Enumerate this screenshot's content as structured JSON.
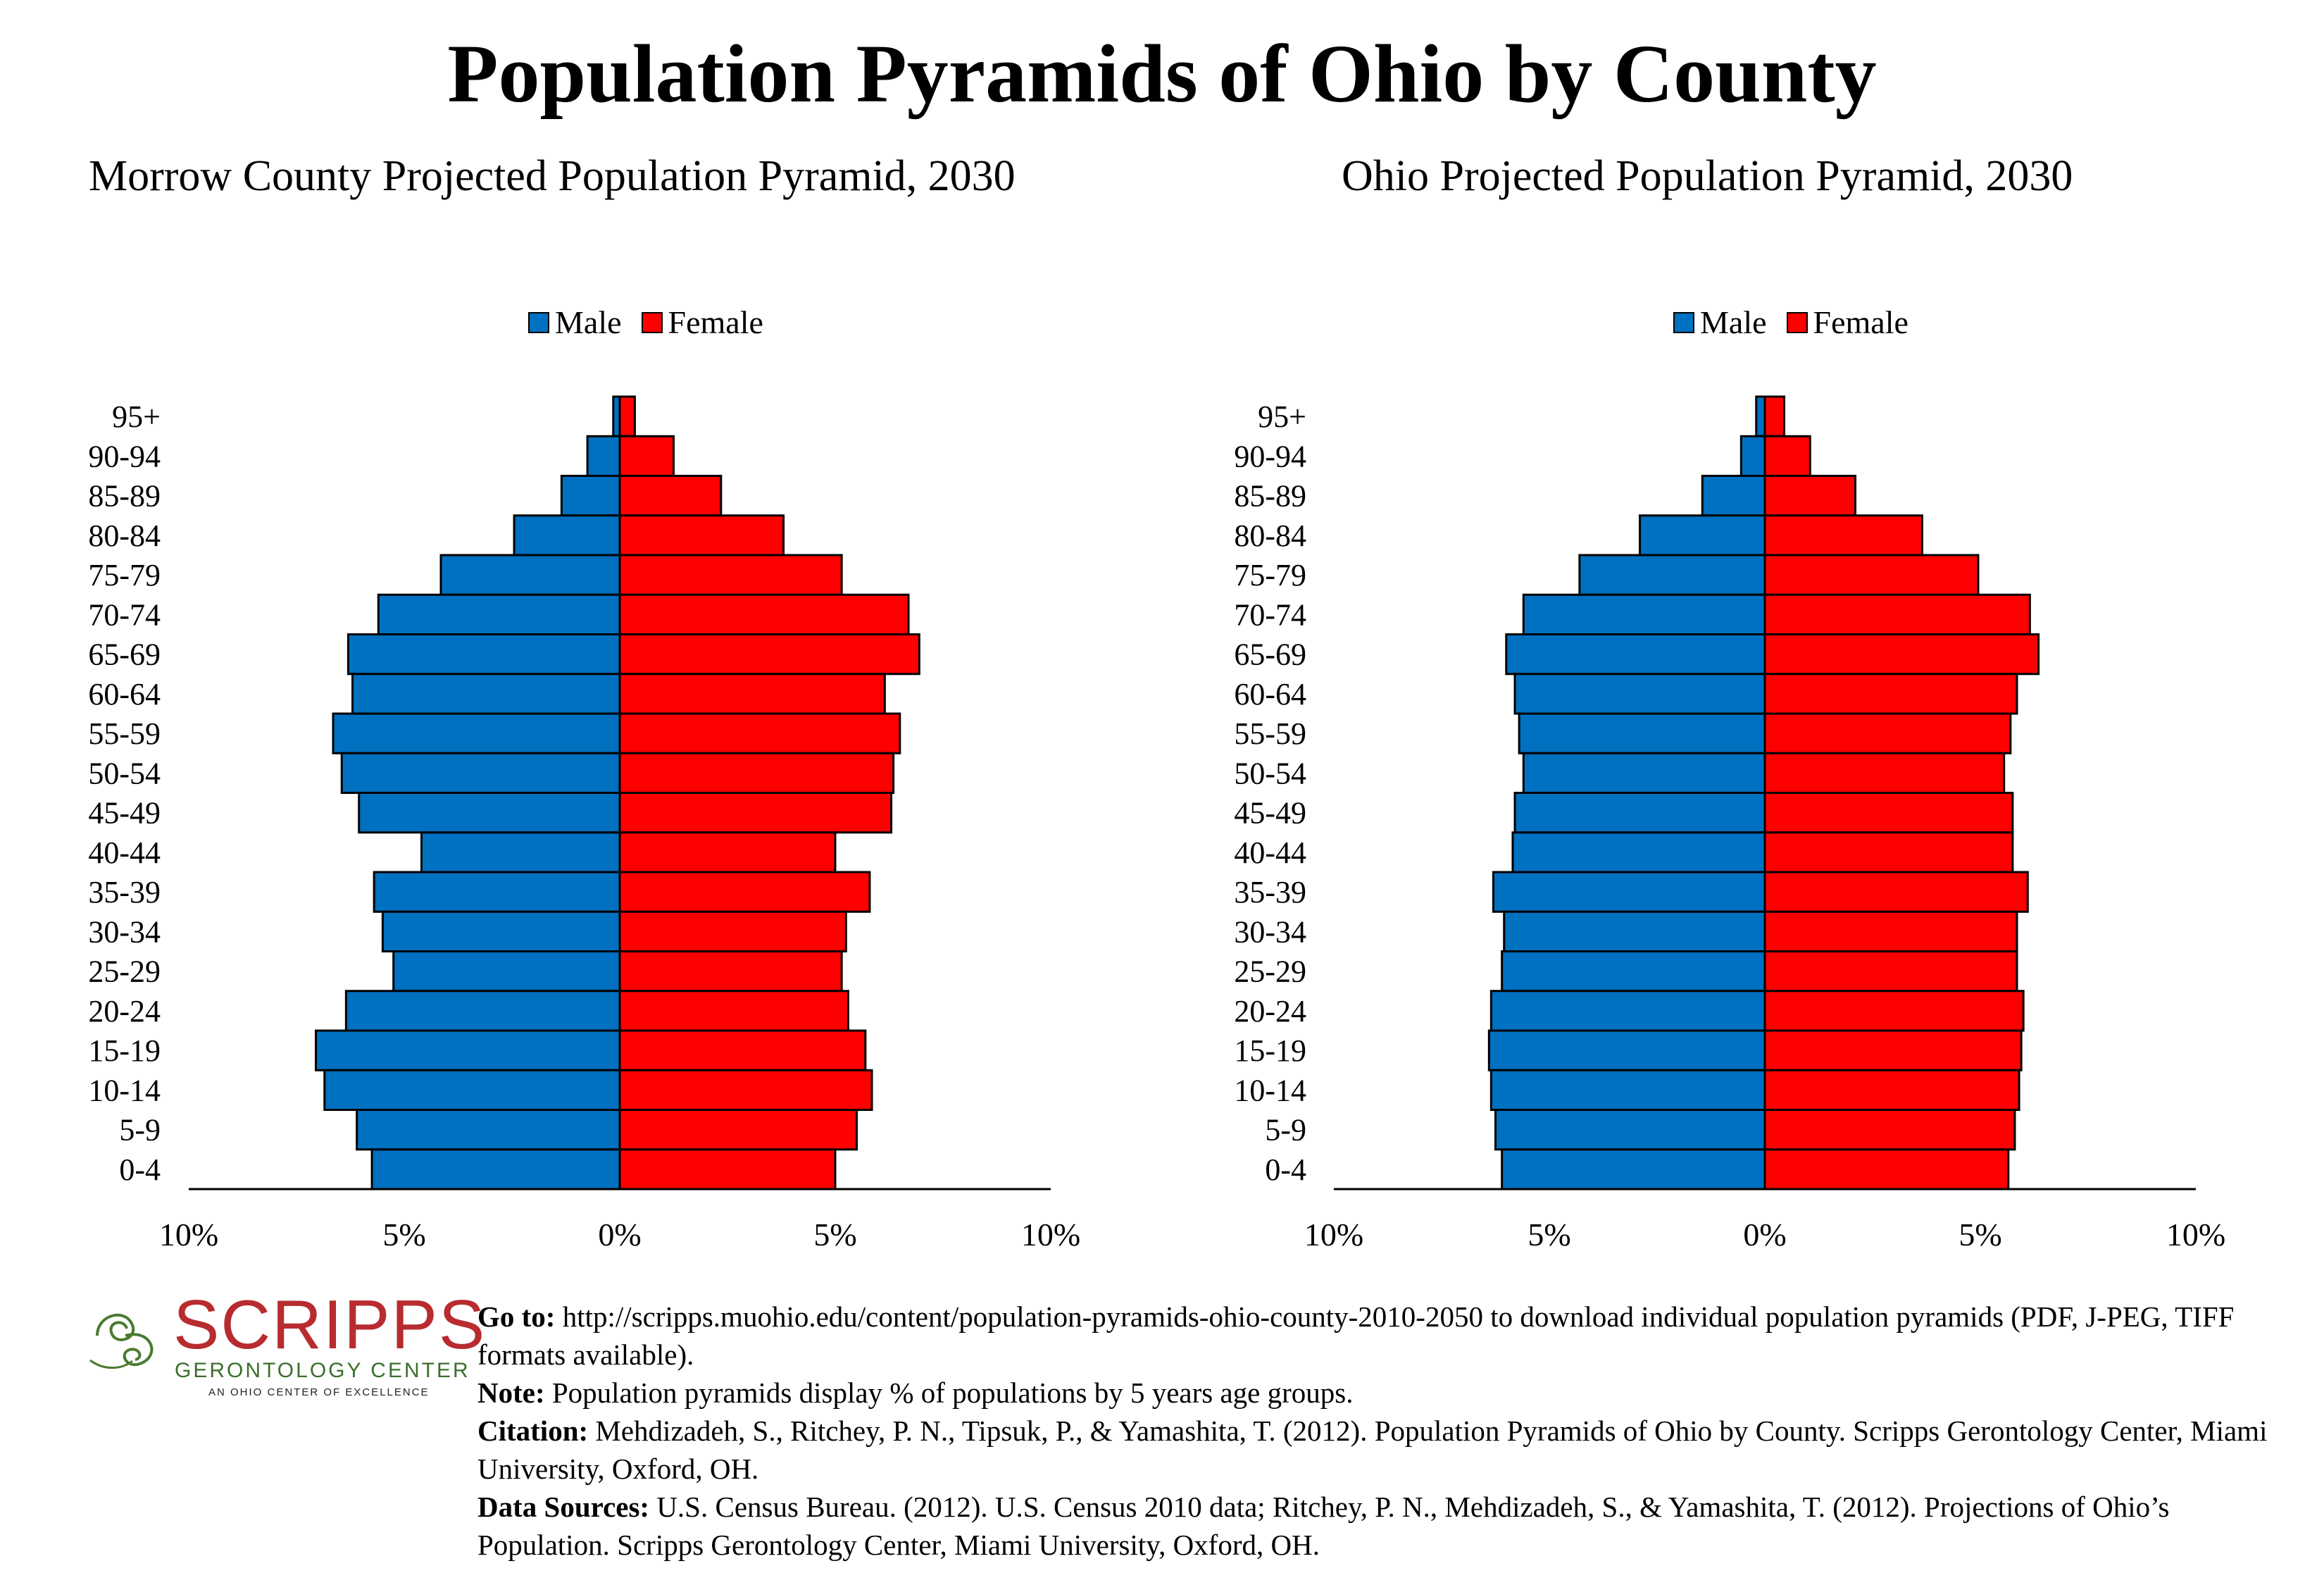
{
  "title": "Population Pyramids of Ohio by County",
  "legend": {
    "male": "Male",
    "female": "Female"
  },
  "colors": {
    "male": "#0070c0",
    "female": "#ff0000",
    "outline": "#000000"
  },
  "chart_data": [
    {
      "type": "bar",
      "orientation": "horizontal-pyramid",
      "title": "Morrow County Projected Population Pyramid, 2030",
      "categories": [
        "95+",
        "90-94",
        "85-89",
        "80-84",
        "75-79",
        "70-74",
        "65-69",
        "60-64",
        "55-59",
        "50-54",
        "45-49",
        "40-44",
        "35-39",
        "30-34",
        "25-29",
        "20-24",
        "15-19",
        "10-14",
        "5-9",
        "0-4"
      ],
      "series": [
        {
          "name": "Male",
          "values": [
            0.15,
            0.75,
            1.35,
            2.45,
            4.15,
            5.6,
            6.3,
            6.2,
            6.65,
            6.45,
            6.05,
            4.6,
            5.7,
            5.5,
            5.25,
            6.35,
            7.05,
            6.85,
            6.1,
            5.75
          ]
        },
        {
          "name": "Female",
          "values": [
            0.35,
            1.25,
            2.35,
            3.8,
            5.15,
            6.7,
            6.95,
            6.15,
            6.5,
            6.35,
            6.3,
            5.0,
            5.8,
            5.25,
            5.15,
            5.3,
            5.7,
            5.85,
            5.5,
            5.0
          ]
        }
      ],
      "xlim": [
        -10,
        10
      ],
      "x_ticks": [
        "10%",
        "5%",
        "0%",
        "5%",
        "10%"
      ],
      "legend_position": "top"
    },
    {
      "type": "bar",
      "orientation": "horizontal-pyramid",
      "title": "Ohio Projected Population Pyramid, 2030",
      "categories": [
        "95+",
        "90-94",
        "85-89",
        "80-84",
        "75-79",
        "70-74",
        "65-69",
        "60-64",
        "55-59",
        "50-54",
        "45-49",
        "40-44",
        "35-39",
        "30-34",
        "25-29",
        "20-24",
        "15-19",
        "10-14",
        "5-9",
        "0-4"
      ],
      "series": [
        {
          "name": "Male",
          "values": [
            0.2,
            0.55,
            1.45,
            2.9,
            4.3,
            5.6,
            6.0,
            5.8,
            5.7,
            5.6,
            5.8,
            5.85,
            6.3,
            6.05,
            6.1,
            6.35,
            6.4,
            6.35,
            6.25,
            6.1
          ]
        },
        {
          "name": "Female",
          "values": [
            0.45,
            1.05,
            2.1,
            3.65,
            4.95,
            6.15,
            6.35,
            5.85,
            5.7,
            5.55,
            5.75,
            5.75,
            6.1,
            5.85,
            5.85,
            6.0,
            5.95,
            5.9,
            5.8,
            5.65
          ]
        }
      ],
      "xlim": [
        -10,
        10
      ],
      "x_ticks": [
        "10%",
        "5%",
        "0%",
        "5%",
        "10%"
      ],
      "legend_position": "top"
    }
  ],
  "logo": {
    "word": "SCRIPPS",
    "subtitle": "GERONTOLOGY CENTER",
    "tagline": "AN OHIO CENTER OF EXCELLENCE"
  },
  "notes": [
    {
      "label": "Go to:",
      "text": " http://scripps.muohio.edu/content/population-pyramids-ohio-county-2010-2050 to download individual population pyramids (PDF, J-PEG, TIFF formats available)."
    },
    {
      "label": "Note:",
      "text": " Population pyramids display % of populations by 5 years age groups."
    },
    {
      "label": "Citation:",
      "text": " Mehdizadeh, S., Ritchey, P. N., Tipsuk, P., & Yamashita, T. (2012). Population Pyramids of Ohio by County. Scripps Gerontology Center, Miami University, Oxford, OH."
    },
    {
      "label": "Data Sources:",
      "text": " U.S. Census Bureau. (2012). U.S. Census 2010 data; Ritchey, P. N., Mehdizadeh, S., & Yamashita, T. (2012). Projections of Ohio’s Population. Scripps Gerontology Center, Miami University, Oxford, OH."
    }
  ]
}
